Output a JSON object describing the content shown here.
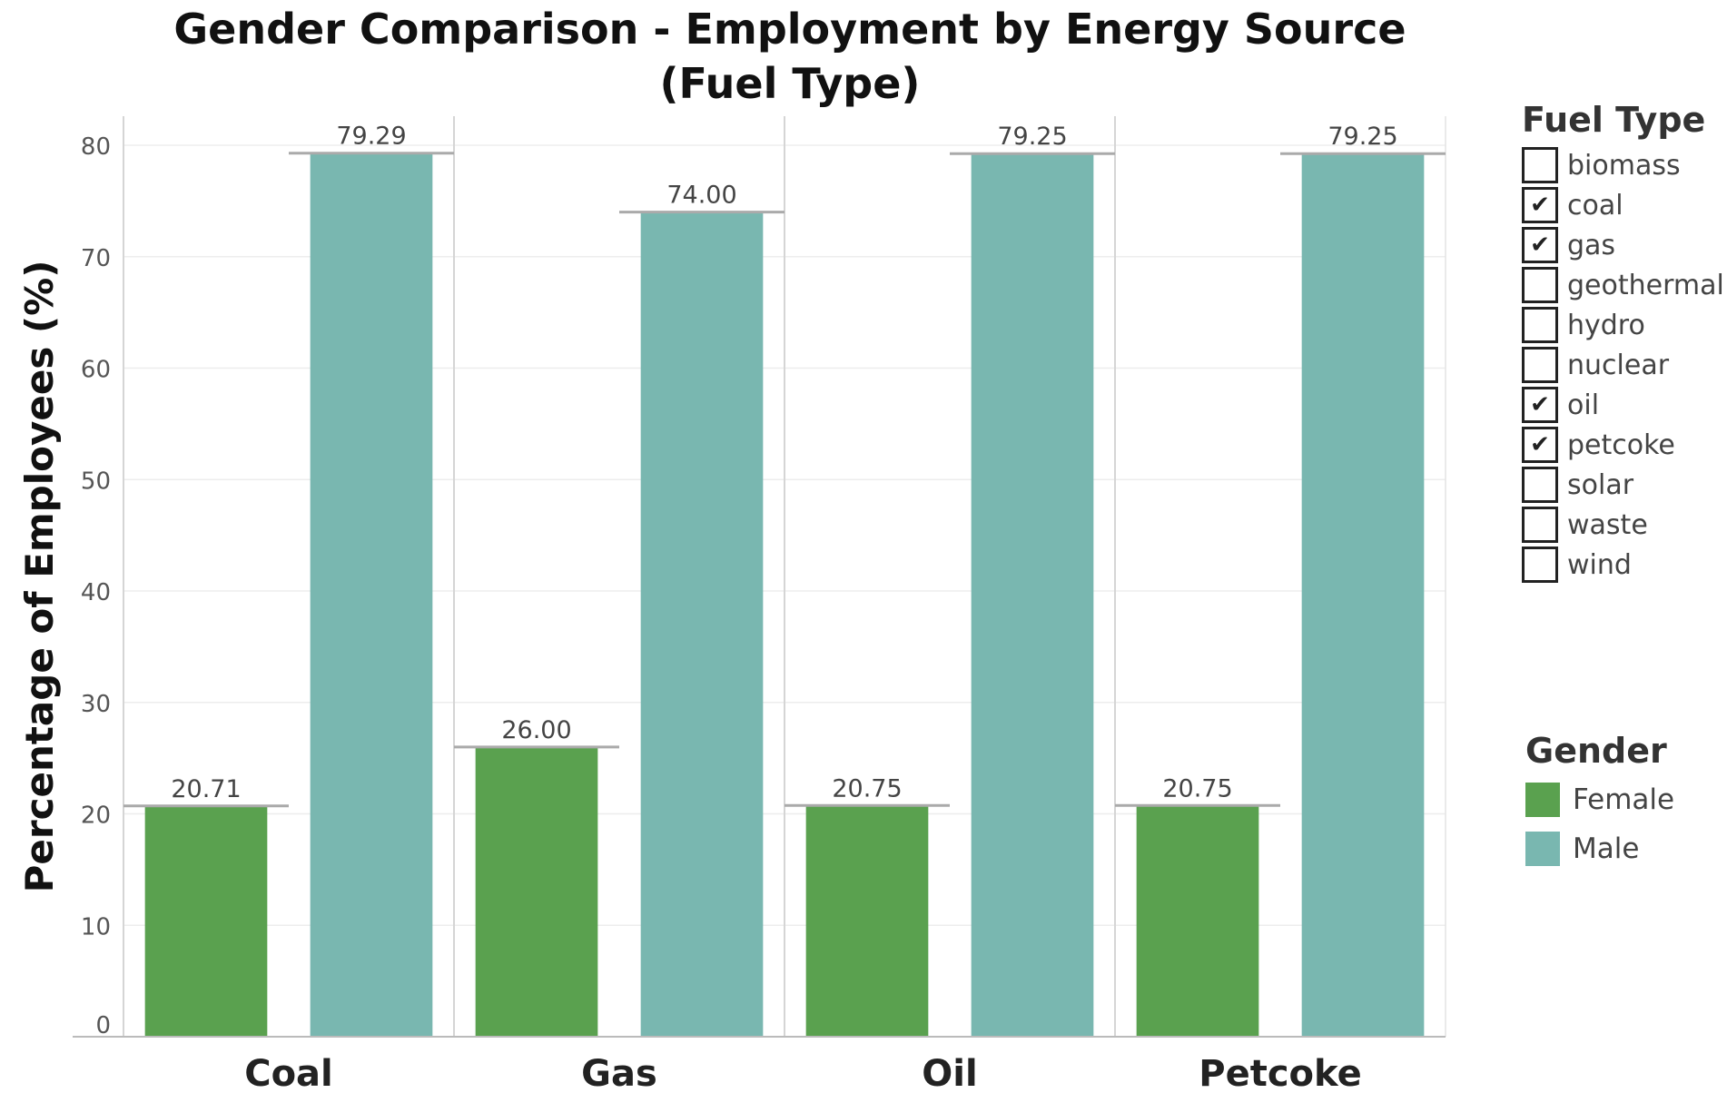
{
  "chart_data": {
    "type": "bar",
    "title": [
      "Gender Comparison - Employment by Energy Source",
      "(Fuel Type)"
    ],
    "ylabel": "Percentage of Employees (%)",
    "xlabel": "",
    "ylim": [
      0,
      80
    ],
    "yticks": [
      0,
      10,
      20,
      30,
      40,
      50,
      60,
      70,
      80
    ],
    "categories": [
      "Coal",
      "Gas",
      "Oil",
      "Petcoke"
    ],
    "series": [
      {
        "name": "Female",
        "color": "#5aa14f",
        "values": [
          20.71,
          26.0,
          20.75,
          20.75
        ],
        "labels": [
          "20.71",
          "26.00",
          "20.75",
          "20.75"
        ]
      },
      {
        "name": "Male",
        "color": "#79b7b0",
        "values": [
          79.29,
          74.0,
          79.25,
          79.25
        ],
        "labels": [
          "79.29",
          "74.00",
          "79.25",
          "79.25"
        ]
      }
    ],
    "grid": true,
    "legend_position": "right"
  },
  "fuel_legend": {
    "title": "Fuel Type",
    "check_mark": "✔",
    "items": [
      {
        "label": "biomass",
        "checked": false
      },
      {
        "label": "coal",
        "checked": true
      },
      {
        "label": "gas",
        "checked": true
      },
      {
        "label": "geothermal",
        "checked": false
      },
      {
        "label": "hydro",
        "checked": false
      },
      {
        "label": "nuclear",
        "checked": false
      },
      {
        "label": "oil",
        "checked": true
      },
      {
        "label": "petcoke",
        "checked": true
      },
      {
        "label": "solar",
        "checked": false
      },
      {
        "label": "waste",
        "checked": false
      },
      {
        "label": "wind",
        "checked": false
      }
    ]
  },
  "gender_legend": {
    "title": "Gender"
  }
}
